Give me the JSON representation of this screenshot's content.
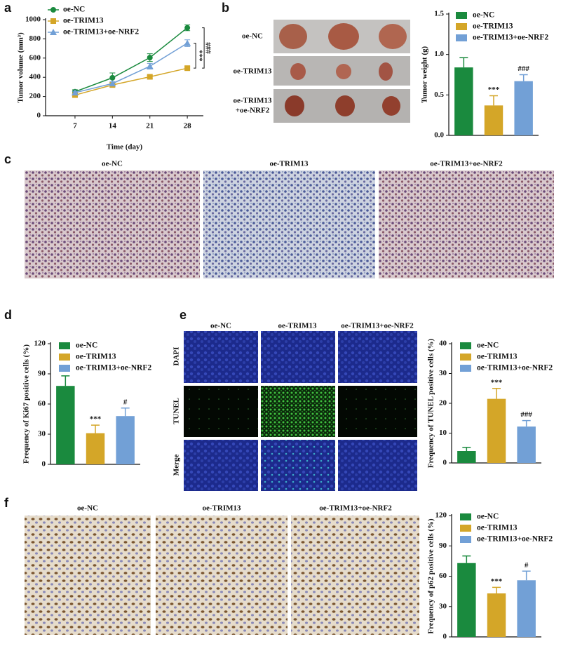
{
  "figure": {
    "panel_labels": [
      "a",
      "b",
      "c",
      "d",
      "e",
      "f"
    ],
    "b_photo": {
      "row_labels": [
        [
          "oe-NC"
        ],
        [
          "oe-TRIM13"
        ],
        [
          "oe-TRIM13",
          "+oe-NRF2"
        ]
      ]
    },
    "c_images": {
      "column_labels": [
        "oe-NC",
        "oe-TRIM13",
        "oe-TRIM13+oe-NRF2"
      ]
    },
    "e_images": {
      "column_labels": [
        "oe-NC",
        "oe-TRIM13",
        "oe-TRIM13+oe-NRF2"
      ],
      "row_labels": [
        "DAPI",
        "TUNEL",
        "Merge"
      ]
    },
    "f_images": {
      "column_labels": [
        "oe-NC",
        "oe-TRIM13",
        "oe-TRIM13+oe-NRF2"
      ]
    }
  },
  "chart_data": [
    {
      "type": "line",
      "xlabel": "Time (day)",
      "ylabel": "Tumor volume (mm³)",
      "x": [
        7,
        14,
        21,
        28
      ],
      "xlim": [
        1.5,
        31
      ],
      "xticks": [
        7,
        14,
        21,
        28
      ],
      "ylim": [
        0,
        1000
      ],
      "yticks": [
        0,
        200,
        400,
        600,
        800,
        1000
      ],
      "series": [
        {
          "name": "oe-NC",
          "color": "#1a8a3e",
          "values": [
            250,
            395,
            605,
            915
          ],
          "errors": [
            20,
            50,
            40,
            30
          ]
        },
        {
          "name": "oe-TRIM13",
          "color": "#d4a628",
          "values": [
            215,
            320,
            405,
            495
          ],
          "errors": [
            15,
            20,
            15,
            15
          ]
        },
        {
          "name": "oe-TRIM13+oe-NRF2",
          "color": "#72a0d6",
          "values": [
            240,
            335,
            515,
            755
          ],
          "errors": [
            15,
            20,
            30,
            35
          ]
        }
      ],
      "annotations": [
        "***",
        "###"
      ]
    },
    {
      "type": "bar",
      "ylabel": "Tumor weight (g)",
      "categories": [
        null
      ],
      "ylim": [
        0,
        1.5
      ],
      "yticks": [
        {
          "value": 0,
          "label": "0.0"
        },
        0.5,
        {
          "value": 1,
          "label": "1.0"
        },
        1.5
      ],
      "series": [
        {
          "name": "oe-NC",
          "color": "#1a8a3e",
          "values": [
            0.84
          ],
          "errors": [
            0.12
          ]
        },
        {
          "name": "oe-TRIM13",
          "color": "#d4a628",
          "values": [
            0.37
          ],
          "errors": [
            0.12
          ],
          "annotation": "***"
        },
        {
          "name": "oe-TRIM13+oe-NRF2",
          "color": "#72a0d6",
          "values": [
            0.67
          ],
          "errors": [
            0.08
          ],
          "annotation": "###"
        }
      ]
    },
    {
      "type": "bar",
      "ylabel": "Frequency of Ki67 positive cells (%)",
      "categories": [
        null
      ],
      "ylim": [
        0,
        120
      ],
      "yticks": [
        0,
        30,
        60,
        90,
        120
      ],
      "series": [
        {
          "name": "oe-NC",
          "color": "#1a8a3e",
          "values": [
            78
          ],
          "errors": [
            10
          ]
        },
        {
          "name": "oe-TRIM13",
          "color": "#d4a628",
          "values": [
            31
          ],
          "errors": [
            8
          ],
          "annotation": "***"
        },
        {
          "name": "oe-TRIM13+oe-NRF2",
          "color": "#72a0d6",
          "values": [
            48
          ],
          "errors": [
            8
          ],
          "annotation": "#"
        }
      ]
    },
    {
      "type": "bar",
      "ylabel": "Frequency of TUNEL positive cells (%)",
      "categories": [
        null
      ],
      "ylim": [
        0,
        40
      ],
      "yticks": [
        0,
        10,
        20,
        30,
        40
      ],
      "series": [
        {
          "name": "oe-NC",
          "color": "#1a8a3e",
          "values": [
            4
          ],
          "errors": [
            1.2
          ]
        },
        {
          "name": "oe-TRIM13",
          "color": "#d4a628",
          "values": [
            21.5
          ],
          "errors": [
            3.5
          ],
          "annotation": "***"
        },
        {
          "name": "oe-TRIM13+oe-NRF2",
          "color": "#72a0d6",
          "values": [
            12.2
          ],
          "errors": [
            2
          ],
          "annotation": "###"
        }
      ]
    },
    {
      "type": "bar",
      "ylabel": "Frequency of p62 positive cells (%)",
      "categories": [
        null
      ],
      "ylim": [
        0,
        120
      ],
      "yticks": [
        0,
        30,
        60,
        90,
        120
      ],
      "series": [
        {
          "name": "oe-NC",
          "color": "#1a8a3e",
          "values": [
            73
          ],
          "errors": [
            7
          ]
        },
        {
          "name": "oe-TRIM13",
          "color": "#d4a628",
          "values": [
            43
          ],
          "errors": [
            6
          ],
          "annotation": "***"
        },
        {
          "name": "oe-TRIM13+oe-NRF2",
          "color": "#72a0d6",
          "values": [
            56
          ],
          "errors": [
            9
          ],
          "annotation": "#"
        }
      ]
    }
  ]
}
